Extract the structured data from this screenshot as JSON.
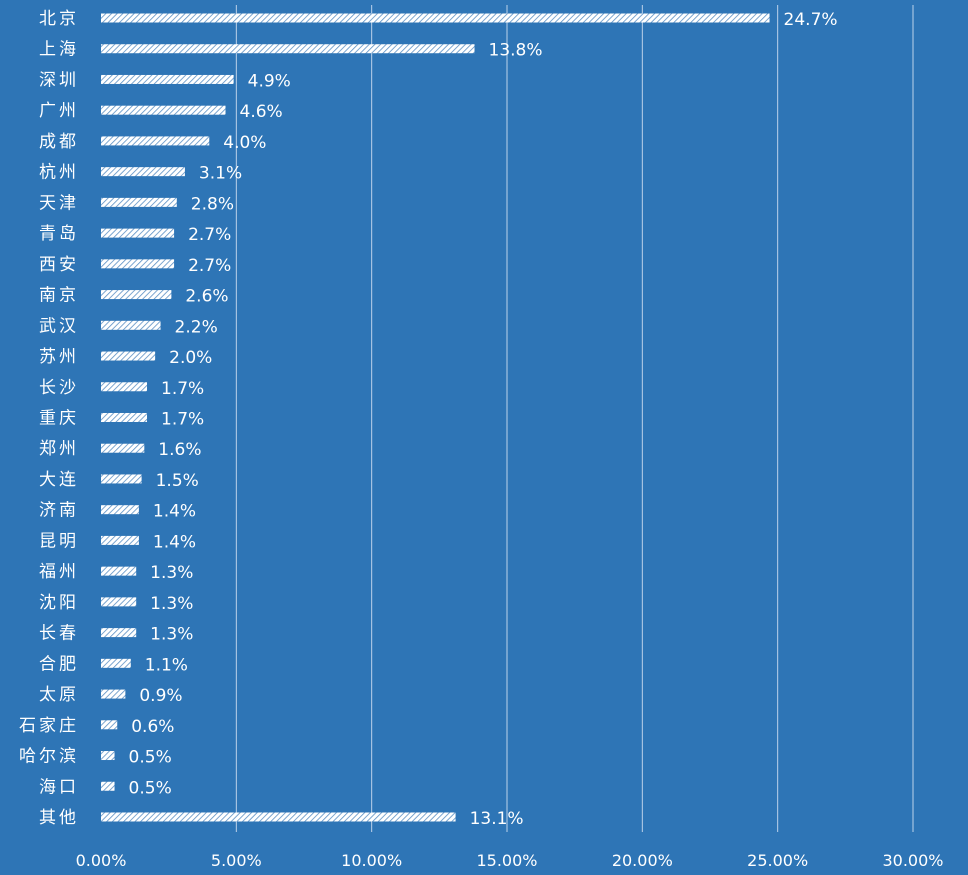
{
  "chart_data": {
    "type": "bar",
    "orientation": "horizontal",
    "categories": [
      "北京",
      "上海",
      "深圳",
      "广州",
      "成都",
      "杭州",
      "天津",
      "青岛",
      "西安",
      "南京",
      "武汉",
      "苏州",
      "长沙",
      "重庆",
      "郑州",
      "大连",
      "济南",
      "昆明",
      "福州",
      "沈阳",
      "长春",
      "合肥",
      "太原",
      "石家庄",
      "哈尔滨",
      "海口",
      "其他"
    ],
    "values": [
      24.7,
      13.8,
      4.9,
      4.6,
      4.0,
      3.1,
      2.8,
      2.7,
      2.7,
      2.6,
      2.2,
      2.0,
      1.7,
      1.7,
      1.6,
      1.5,
      1.4,
      1.4,
      1.3,
      1.3,
      1.3,
      1.1,
      0.9,
      0.6,
      0.5,
      0.5,
      13.1
    ],
    "value_labels": [
      "24.7%",
      "13.8%",
      "4.9%",
      "4.6%",
      "4.0%",
      "3.1%",
      "2.8%",
      "2.7%",
      "2.7%",
      "2.6%",
      "2.2%",
      "2.0%",
      "1.7%",
      "1.7%",
      "1.6%",
      "1.5%",
      "1.4%",
      "1.4%",
      "1.3%",
      "1.3%",
      "1.3%",
      "1.1%",
      "0.9%",
      "0.6%",
      "0.5%",
      "0.5%",
      "13.1%"
    ],
    "x_ticks": [
      0,
      5,
      10,
      15,
      20,
      25,
      30
    ],
    "x_tick_labels": [
      "0.00%",
      "5.00%",
      "10.00%",
      "15.00%",
      "20.00%",
      "25.00%",
      "30.00%"
    ],
    "xlim": [
      0,
      30
    ],
    "grid": true,
    "bar_fill": "diagonal-hatch",
    "title": "",
    "xlabel": "",
    "ylabel": ""
  },
  "colors": {
    "background": "#2e75b6",
    "bar": "#ffffff",
    "text": "#ffffff",
    "grid": "#bcd2ea"
  }
}
